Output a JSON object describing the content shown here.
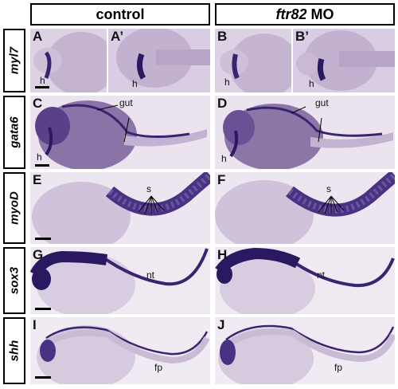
{
  "headers": {
    "control": "control",
    "mo_gene": "ftr82",
    "mo_suffix": " MO"
  },
  "genes": [
    "myl7",
    "gata6",
    "myoD",
    "sox3",
    "shh"
  ],
  "panel_labels": {
    "A": "A",
    "A2": "A’",
    "B": "B",
    "B2": "B’",
    "C": "C",
    "D": "D",
    "E": "E",
    "F": "F",
    "G": "G",
    "H": "H",
    "I": "I",
    "J": "J"
  },
  "annotations": {
    "h": "h",
    "gut": "gut",
    "s": "s",
    "nt": "nt",
    "fp": "fp"
  },
  "colors": {
    "background_tissue": "#e9e2ee",
    "yolk": "#c9b8d3",
    "stain": "#3a2470"
  }
}
